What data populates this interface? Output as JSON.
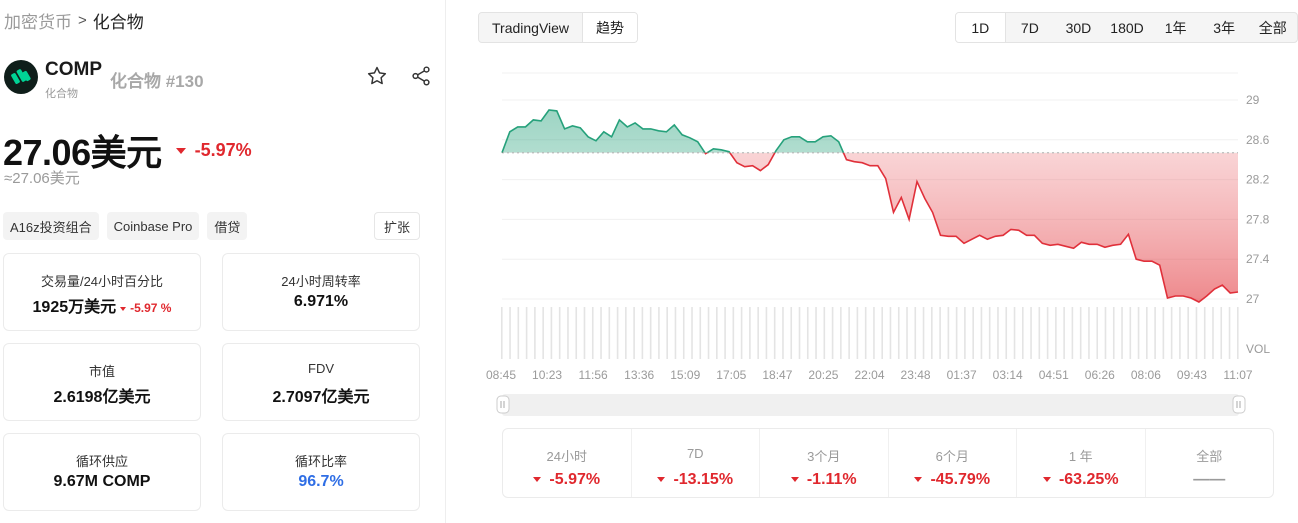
{
  "breadcrumb": {
    "root": "加密货币",
    "separator": ">",
    "current": "化合物"
  },
  "coin": {
    "symbol": "COMP",
    "subtitle": "化合物",
    "rank_label": "化合物 #130",
    "logo_icon": "compound-logo-icon"
  },
  "price": {
    "value": "27.06美元",
    "change": "-5.97%",
    "approx": "≈27.06美元"
  },
  "tags": [
    "A16z投资组合",
    "Coinbase Pro",
    "借贷"
  ],
  "expand_label": "扩张",
  "stats": {
    "volume": {
      "label": "交易量/24小时百分比",
      "value": "1925万美元",
      "change": "-5.97 %"
    },
    "turnover": {
      "label": "24小时周转率",
      "value": "6.971%"
    },
    "market_cap": {
      "label": "市值",
      "value": "2.6198亿美元"
    },
    "fdv": {
      "label": "FDV",
      "value": "2.7097亿美元"
    },
    "circulating": {
      "label": "循环供应",
      "value": "9.67M COMP"
    },
    "circulating_ratio": {
      "label": "循环比率",
      "value": "96.7%"
    }
  },
  "chart_toggle": {
    "tradingview": "TradingView",
    "trend": "趋势"
  },
  "ranges": [
    "1D",
    "7D",
    "30D",
    "180D",
    "1年",
    "3年",
    "全部"
  ],
  "chart_data": {
    "type": "area",
    "baseline": 28.47,
    "y_ticks": [
      "29",
      "28.6",
      "28.2",
      "27.8",
      "27.4",
      "27"
    ],
    "vol_label": "VOL",
    "x_ticks": [
      "08:45",
      "10:23",
      "11:56",
      "13:36",
      "15:09",
      "17:05",
      "18:47",
      "20:25",
      "22:04",
      "23:48",
      "01:37",
      "03:14",
      "04:51",
      "06:26",
      "08:06",
      "09:43",
      "11:07"
    ],
    "values": [
      28.47,
      28.68,
      28.73,
      28.73,
      28.8,
      28.79,
      28.9,
      28.89,
      28.71,
      28.74,
      28.72,
      28.63,
      28.59,
      28.68,
      28.63,
      28.8,
      28.73,
      28.77,
      28.71,
      28.71,
      28.69,
      28.68,
      28.75,
      28.65,
      28.62,
      28.58,
      28.46,
      28.51,
      28.5,
      28.48,
      28.37,
      28.33,
      28.34,
      28.29,
      28.35,
      28.49,
      28.6,
      28.63,
      28.63,
      28.58,
      28.58,
      28.63,
      28.64,
      28.58,
      28.4,
      28.38,
      28.37,
      28.34,
      28.34,
      28.21,
      27.87,
      28.02,
      27.8,
      28.18,
      28.01,
      27.87,
      27.64,
      27.63,
      27.63,
      27.56,
      27.6,
      27.64,
      27.6,
      27.63,
      27.64,
      27.7,
      27.69,
      27.64,
      27.64,
      27.56,
      27.54,
      27.55,
      27.53,
      27.51,
      27.57,
      27.55,
      27.55,
      27.52,
      27.54,
      27.55,
      27.65,
      27.4,
      27.38,
      27.38,
      27.34,
      27.01,
      27.03,
      27.03,
      27.01,
      26.97,
      27.03,
      27.1,
      27.14,
      27.06,
      27.07
    ]
  },
  "performance": [
    {
      "label": "24小时",
      "value": "-5.97%"
    },
    {
      "label": "7D",
      "value": "-13.15%"
    },
    {
      "label": "3个月",
      "value": "-1.11%"
    },
    {
      "label": "6个月",
      "value": "-45.79%"
    },
    {
      "label": "1 年",
      "value": "-63.25%"
    },
    {
      "label": "全部",
      "value": "——"
    }
  ],
  "colors": {
    "up": "#26a17b",
    "down": "#e0282e",
    "accent_blue": "#2f6ee5"
  },
  "icons": {
    "favorite": "star-icon",
    "share": "share-icon"
  }
}
